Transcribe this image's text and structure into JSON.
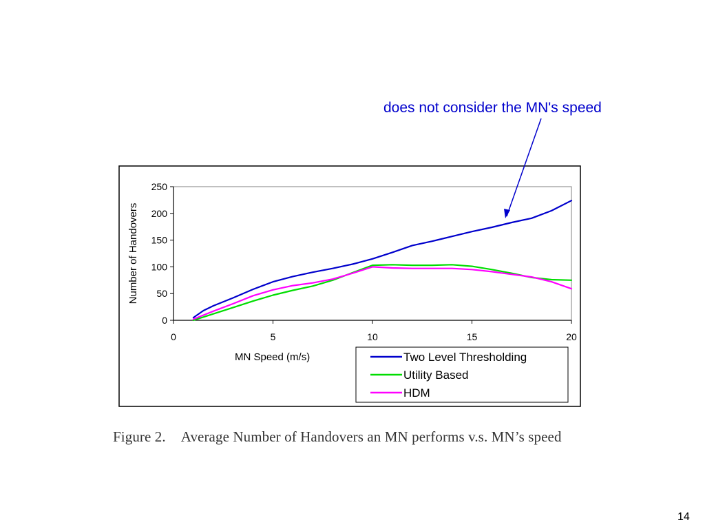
{
  "annotation": "does not consider the MN's speed",
  "caption": {
    "figure_label": "Figure 2.",
    "text": "Average Number of Handovers an MN performs v.s. MN’s speed"
  },
  "page_number": "14",
  "chart_data": {
    "type": "line",
    "xlabel": "MN Speed (m/s)",
    "ylabel": "Number of Handovers",
    "xlim": [
      0,
      20
    ],
    "ylim": [
      0,
      250
    ],
    "x_ticks": [
      0,
      5,
      10,
      15,
      20
    ],
    "y_ticks": [
      0,
      50,
      100,
      150,
      200,
      250
    ],
    "grid": false,
    "legend_position": "bottom-right, outside plot area",
    "series": [
      {
        "name": "Two Level Thresholding",
        "color": "#0000cc",
        "x": [
          1,
          1.5,
          2,
          3,
          4,
          5,
          6,
          7,
          8,
          9,
          10,
          11,
          12,
          13,
          14,
          15,
          16,
          17,
          18,
          19,
          20
        ],
        "y": [
          5,
          18,
          27,
          42,
          58,
          72,
          82,
          90,
          97,
          105,
          115,
          127,
          140,
          148,
          157,
          166,
          174,
          183,
          191,
          205,
          224
        ]
      },
      {
        "name": "Utility Based",
        "color": "#00dd00",
        "x": [
          1,
          2,
          3,
          4,
          5,
          6,
          7,
          8,
          9,
          10,
          11,
          12,
          13,
          14,
          15,
          16,
          17,
          18,
          19,
          20
        ],
        "y": [
          0,
          12,
          24,
          36,
          47,
          56,
          64,
          75,
          89,
          103,
          104,
          103,
          103,
          104,
          101,
          95,
          88,
          80,
          76,
          75
        ]
      },
      {
        "name": "HDM",
        "color": "#ff00ff",
        "x": [
          1,
          2,
          3,
          4,
          5,
          6,
          7,
          8,
          9,
          10,
          11,
          12,
          13,
          14,
          15,
          16,
          17,
          18,
          19,
          20
        ],
        "y": [
          2,
          17,
          31,
          46,
          57,
          65,
          70,
          77,
          88,
          100,
          98,
          97,
          97,
          97,
          95,
          91,
          86,
          81,
          72,
          59
        ]
      }
    ]
  }
}
